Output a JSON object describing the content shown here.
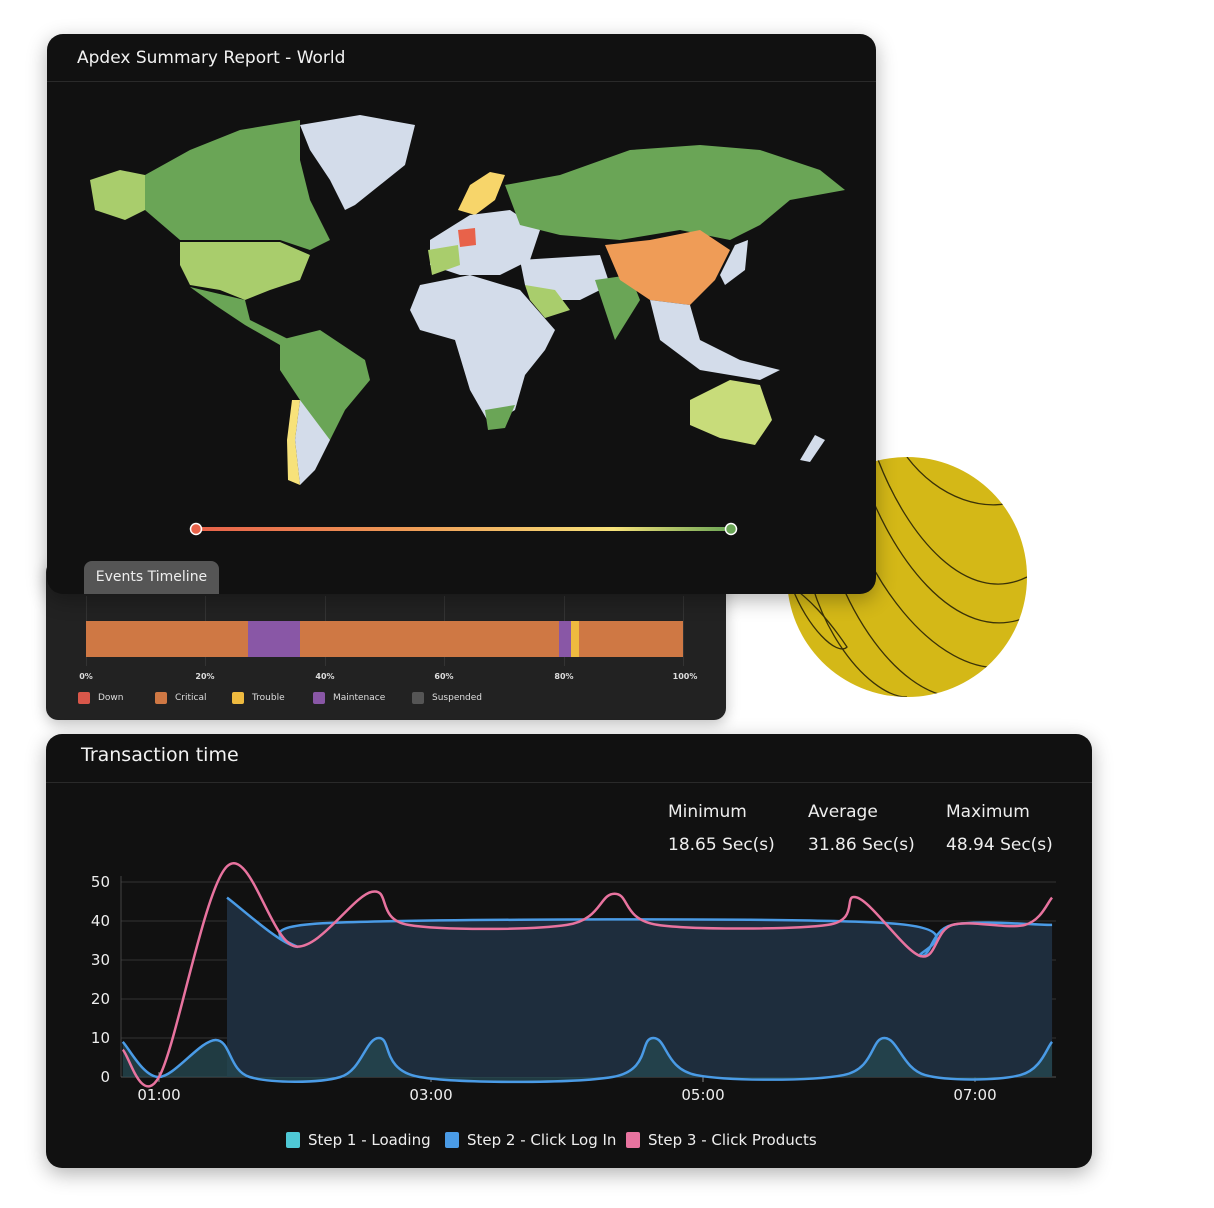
{
  "map_card": {
    "title": "Apdex Summary Report - World",
    "colors": {
      "good": "#6aa556",
      "fair": "#a9cd6c",
      "light": "#c8dc7a",
      "trouble": "#f7d56a",
      "critical": "#ef9c57",
      "down": "#e8624a",
      "nodata": "#d3dcea"
    },
    "scale_gradient": [
      "#e8624a",
      "#ef9c57",
      "#f7e27a",
      "#6aa556"
    ]
  },
  "events_timeline": {
    "tab_label": "Events Timeline",
    "segments": [
      {
        "status": "Critical",
        "from": 0,
        "to": 27.2
      },
      {
        "status": "Maintenace",
        "from": 27.2,
        "to": 35.9
      },
      {
        "status": "Critical",
        "from": 35.9,
        "to": 79.3
      },
      {
        "status": "Maintenace",
        "from": 79.3,
        "to": 81.3
      },
      {
        "status": "Trouble",
        "from": 81.3,
        "to": 82.5
      },
      {
        "status": "Critical",
        "from": 82.5,
        "to": 100
      }
    ],
    "ticks": [
      "0%",
      "20%",
      "40%",
      "60%",
      "80%",
      "100%"
    ],
    "legend": [
      {
        "label": "Down",
        "color": "#d9574a"
      },
      {
        "label": "Critical",
        "color": "#cf7844"
      },
      {
        "label": "Trouble",
        "color": "#eeba3f"
      },
      {
        "label": "Maintenace",
        "color": "#8957a6"
      },
      {
        "label": "Suspended",
        "color": "#555555"
      }
    ]
  },
  "transaction_card": {
    "title": "Transaction time",
    "stats": [
      {
        "label": "Minimum",
        "value": "18.65 Sec(s)"
      },
      {
        "label": "Average",
        "value": "31.86 Sec(s)"
      },
      {
        "label": "Maximum",
        "value": "48.94 Sec(s)"
      }
    ]
  },
  "chart_data": {
    "type": "line",
    "title": "",
    "xlabel": "",
    "ylabel": "",
    "ylim": [
      0,
      50
    ],
    "yticks": [
      "0",
      "10",
      "20",
      "30",
      "40",
      "50"
    ],
    "xticks": [
      "01:00",
      "03:00",
      "05:00",
      "07:00"
    ],
    "grid": true,
    "legend_placement": "bottom",
    "series": [
      {
        "name": "Step 1 - Loading",
        "color": "#4fc9d6",
        "x": [
          "00:44",
          "01:00",
          "01:25",
          "01:40",
          "02:20",
          "02:37",
          "02:55",
          "04:20",
          "04:38",
          "04:57",
          "06:02",
          "06:20",
          "06:38",
          "07:20",
          "07:34"
        ],
        "y": [
          9,
          0,
          9.5,
          0,
          0,
          10,
          0,
          0,
          10,
          0.5,
          0.5,
          10,
          0.5,
          0.5,
          9
        ]
      },
      {
        "name": "Step 2 - Click Log In",
        "color": "#4a9be6",
        "x": [
          "01:30",
          "02:00",
          "02:15",
          "06:20",
          "06:36",
          "06:50",
          "07:34"
        ],
        "y": [
          46,
          33.5,
          39.5,
          39.5,
          31,
          39,
          39
        ]
      },
      {
        "name": "Step 3 - Click Products",
        "color": "#e8739f",
        "x": [
          "00:44",
          "01:00",
          "01:30",
          "02:00",
          "02:34",
          "02:50",
          "04:00",
          "04:21",
          "04:40",
          "05:55",
          "06:08",
          "06:36",
          "06:50",
          "07:22",
          "07:34"
        ],
        "y": [
          7,
          0,
          54,
          33.5,
          47.5,
          39,
          39,
          47,
          39,
          39,
          46,
          31,
          39,
          39,
          46
        ]
      }
    ]
  }
}
